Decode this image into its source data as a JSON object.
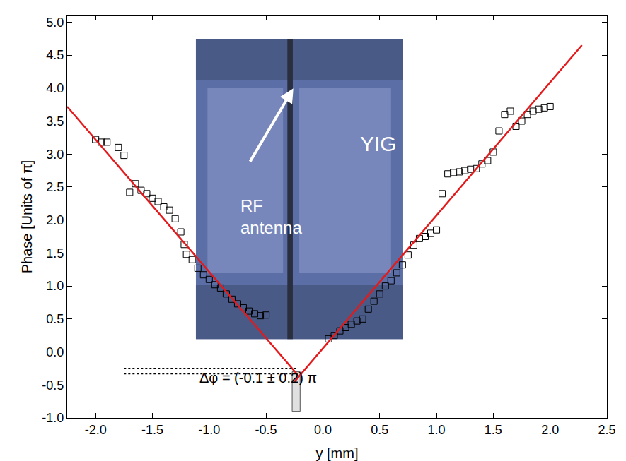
{
  "chart_data": {
    "type": "scatter",
    "x_label": "y [mm]",
    "y_label": "Phase [Units of π]",
    "xlim": [
      -2.25,
      2.5
    ],
    "ylim": [
      -1.0,
      5.1
    ],
    "xticks": [
      {
        "value": -2.0,
        "label": "-2.0"
      },
      -1.5,
      {
        "value": -1.0,
        "label": "-1.0"
      },
      -0.5,
      {
        "value": 0,
        "label": "0.0"
      },
      0.5,
      {
        "value": 1.0,
        "label": "1.0"
      },
      1.5,
      {
        "value": 2.0,
        "label": "2.0"
      },
      2.5
    ],
    "yticks": [
      {
        "value": -1.0,
        "label": "-1.0"
      },
      -0.5,
      {
        "value": 0,
        "label": "0.0"
      },
      0.5,
      {
        "value": 1.0,
        "label": "1.0"
      },
      1.5,
      {
        "value": 2.0,
        "label": "2.0"
      },
      2.5,
      {
        "value": 3.0,
        "label": "3.0"
      },
      3.5,
      {
        "value": 4.0,
        "label": "4.0"
      },
      4.5,
      {
        "value": 5.0,
        "label": "5.0"
      }
    ],
    "grid": false,
    "series": [
      {
        "type": "scatter",
        "marker": "square-open",
        "color": "#000000",
        "x": [
          -2.0,
          -1.95,
          -1.9,
          -1.8,
          -1.75,
          -1.7,
          -1.65,
          -1.6,
          -1.55,
          -1.5,
          -1.45,
          -1.4,
          -1.35,
          -1.3,
          -1.25,
          -1.22,
          -1.2,
          -1.15,
          -1.1,
          -1.05,
          -1.0,
          -0.95,
          -0.9,
          -0.85,
          -0.8,
          -0.75,
          -0.7,
          -0.65,
          -0.6,
          -0.55,
          -0.5,
          0.05,
          0.1,
          0.15,
          0.2,
          0.25,
          0.3,
          0.35,
          0.4,
          0.45,
          0.5,
          0.55,
          0.6,
          0.65,
          0.7,
          0.75,
          0.8,
          0.85,
          0.9,
          0.95,
          1.0,
          1.05,
          1.1,
          1.15,
          1.2,
          1.25,
          1.3,
          1.35,
          1.4,
          1.45,
          1.5,
          1.55,
          1.6,
          1.65,
          1.7,
          1.75,
          1.8,
          1.85,
          1.9,
          1.95,
          2.0
        ],
        "values": [
          3.22,
          3.18,
          3.18,
          3.1,
          2.98,
          2.42,
          2.55,
          2.45,
          2.4,
          2.33,
          2.28,
          2.2,
          2.15,
          2.02,
          1.82,
          1.63,
          1.48,
          1.4,
          1.27,
          1.17,
          1.1,
          1.02,
          0.97,
          0.88,
          0.8,
          0.73,
          0.67,
          0.62,
          0.58,
          0.55,
          0.56,
          0.2,
          0.25,
          0.32,
          0.37,
          0.42,
          0.47,
          0.5,
          0.65,
          0.77,
          0.88,
          1.0,
          1.08,
          1.2,
          1.32,
          1.47,
          1.62,
          1.72,
          1.75,
          1.8,
          1.85,
          2.4,
          2.7,
          2.72,
          2.73,
          2.75,
          2.77,
          2.78,
          2.85,
          2.9,
          3.03,
          3.35,
          3.6,
          3.65,
          3.42,
          3.5,
          3.6,
          3.65,
          3.68,
          3.7,
          3.72
        ]
      },
      {
        "type": "line",
        "color": "#e31a1c",
        "line_style": "solid",
        "x": [
          -2.25,
          -0.22
        ],
        "values": [
          3.72,
          -0.35
        ]
      },
      {
        "type": "line",
        "color": "#e31a1c",
        "line_style": "solid",
        "x": [
          -0.25,
          2.28
        ],
        "values": [
          -0.45,
          4.65
        ]
      },
      {
        "type": "line",
        "color": "#000000",
        "line_style": "dot",
        "x": [
          -1.75,
          -0.22
        ],
        "values": [
          -0.25,
          -0.25
        ]
      },
      {
        "type": "line",
        "color": "#000000",
        "line_style": "dot",
        "x": [
          -1.75,
          -0.22
        ],
        "values": [
          -0.33,
          -0.33
        ]
      }
    ],
    "band": {
      "x": [
        -0.27,
        -0.2
      ],
      "y": [
        -0.9,
        -0.3
      ],
      "color": "#e0e0e0"
    },
    "annotations": [
      "Δφ = (-0.1 ± 0.2) π",
      "YIG",
      "RF antenna"
    ]
  }
}
